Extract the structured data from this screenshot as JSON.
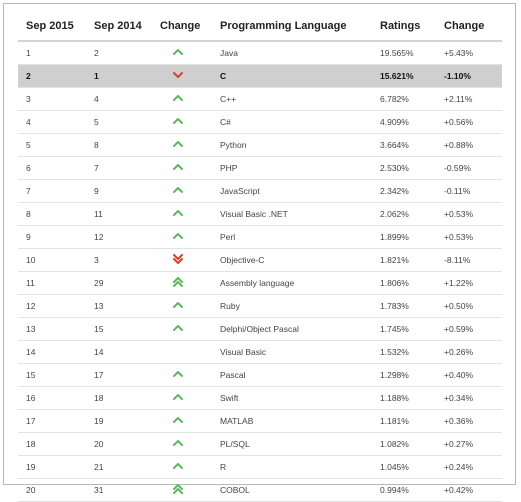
{
  "headers": [
    "Sep 2015",
    "Sep 2014",
    "Change",
    "Programming Language",
    "Ratings",
    "Change"
  ],
  "colors": {
    "up": "#5cb85c",
    "down": "#d9402b",
    "highlight": "#cfcfcf"
  },
  "rows": [
    {
      "r2015": "1",
      "r2014": "2",
      "trend": "up",
      "lang": "Java",
      "rating": "19.565%",
      "change": "+5.43%"
    },
    {
      "r2015": "2",
      "r2014": "1",
      "trend": "down",
      "lang": "C",
      "rating": "15.621%",
      "change": "-1.10%"
    },
    {
      "r2015": "3",
      "r2014": "4",
      "trend": "up",
      "lang": "C++",
      "rating": "6.782%",
      "change": "+2.11%"
    },
    {
      "r2015": "4",
      "r2014": "5",
      "trend": "up",
      "lang": "C#",
      "rating": "4.909%",
      "change": "+0.56%"
    },
    {
      "r2015": "5",
      "r2014": "8",
      "trend": "up",
      "lang": "Python",
      "rating": "3.664%",
      "change": "+0.88%"
    },
    {
      "r2015": "6",
      "r2014": "7",
      "trend": "up",
      "lang": "PHP",
      "rating": "2.530%",
      "change": "-0.59%"
    },
    {
      "r2015": "7",
      "r2014": "9",
      "trend": "up",
      "lang": "JavaScript",
      "rating": "2.342%",
      "change": "-0.11%"
    },
    {
      "r2015": "8",
      "r2014": "11",
      "trend": "up",
      "lang": "Visual Basic .NET",
      "rating": "2.062%",
      "change": "+0.53%"
    },
    {
      "r2015": "9",
      "r2014": "12",
      "trend": "up",
      "lang": "Perl",
      "rating": "1.899%",
      "change": "+0.53%"
    },
    {
      "r2015": "10",
      "r2014": "3",
      "trend": "down-down",
      "lang": "Objective-C",
      "rating": "1.821%",
      "change": "-8.11%"
    },
    {
      "r2015": "11",
      "r2014": "29",
      "trend": "up-up",
      "lang": "Assembly language",
      "rating": "1.806%",
      "change": "+1.22%"
    },
    {
      "r2015": "12",
      "r2014": "13",
      "trend": "up",
      "lang": "Ruby",
      "rating": "1.783%",
      "change": "+0.50%"
    },
    {
      "r2015": "13",
      "r2014": "15",
      "trend": "up",
      "lang": "Delphi/Object Pascal",
      "rating": "1.745%",
      "change": "+0.59%"
    },
    {
      "r2015": "14",
      "r2014": "14",
      "trend": "none",
      "lang": "Visual Basic",
      "rating": "1.532%",
      "change": "+0.26%"
    },
    {
      "r2015": "15",
      "r2014": "17",
      "trend": "up",
      "lang": "Pascal",
      "rating": "1.298%",
      "change": "+0.40%"
    },
    {
      "r2015": "16",
      "r2014": "18",
      "trend": "up",
      "lang": "Swift",
      "rating": "1.188%",
      "change": "+0.34%"
    },
    {
      "r2015": "17",
      "r2014": "19",
      "trend": "up",
      "lang": "MATLAB",
      "rating": "1.181%",
      "change": "+0.36%"
    },
    {
      "r2015": "18",
      "r2014": "20",
      "trend": "up",
      "lang": "PL/SQL",
      "rating": "1.082%",
      "change": "+0.27%"
    },
    {
      "r2015": "19",
      "r2014": "21",
      "trend": "up",
      "lang": "R",
      "rating": "1.045%",
      "change": "+0.24%"
    },
    {
      "r2015": "20",
      "r2014": "31",
      "trend": "up-up",
      "lang": "COBOL",
      "rating": "0.994%",
      "change": "+0.42%"
    }
  ],
  "highlight_row": 1
}
